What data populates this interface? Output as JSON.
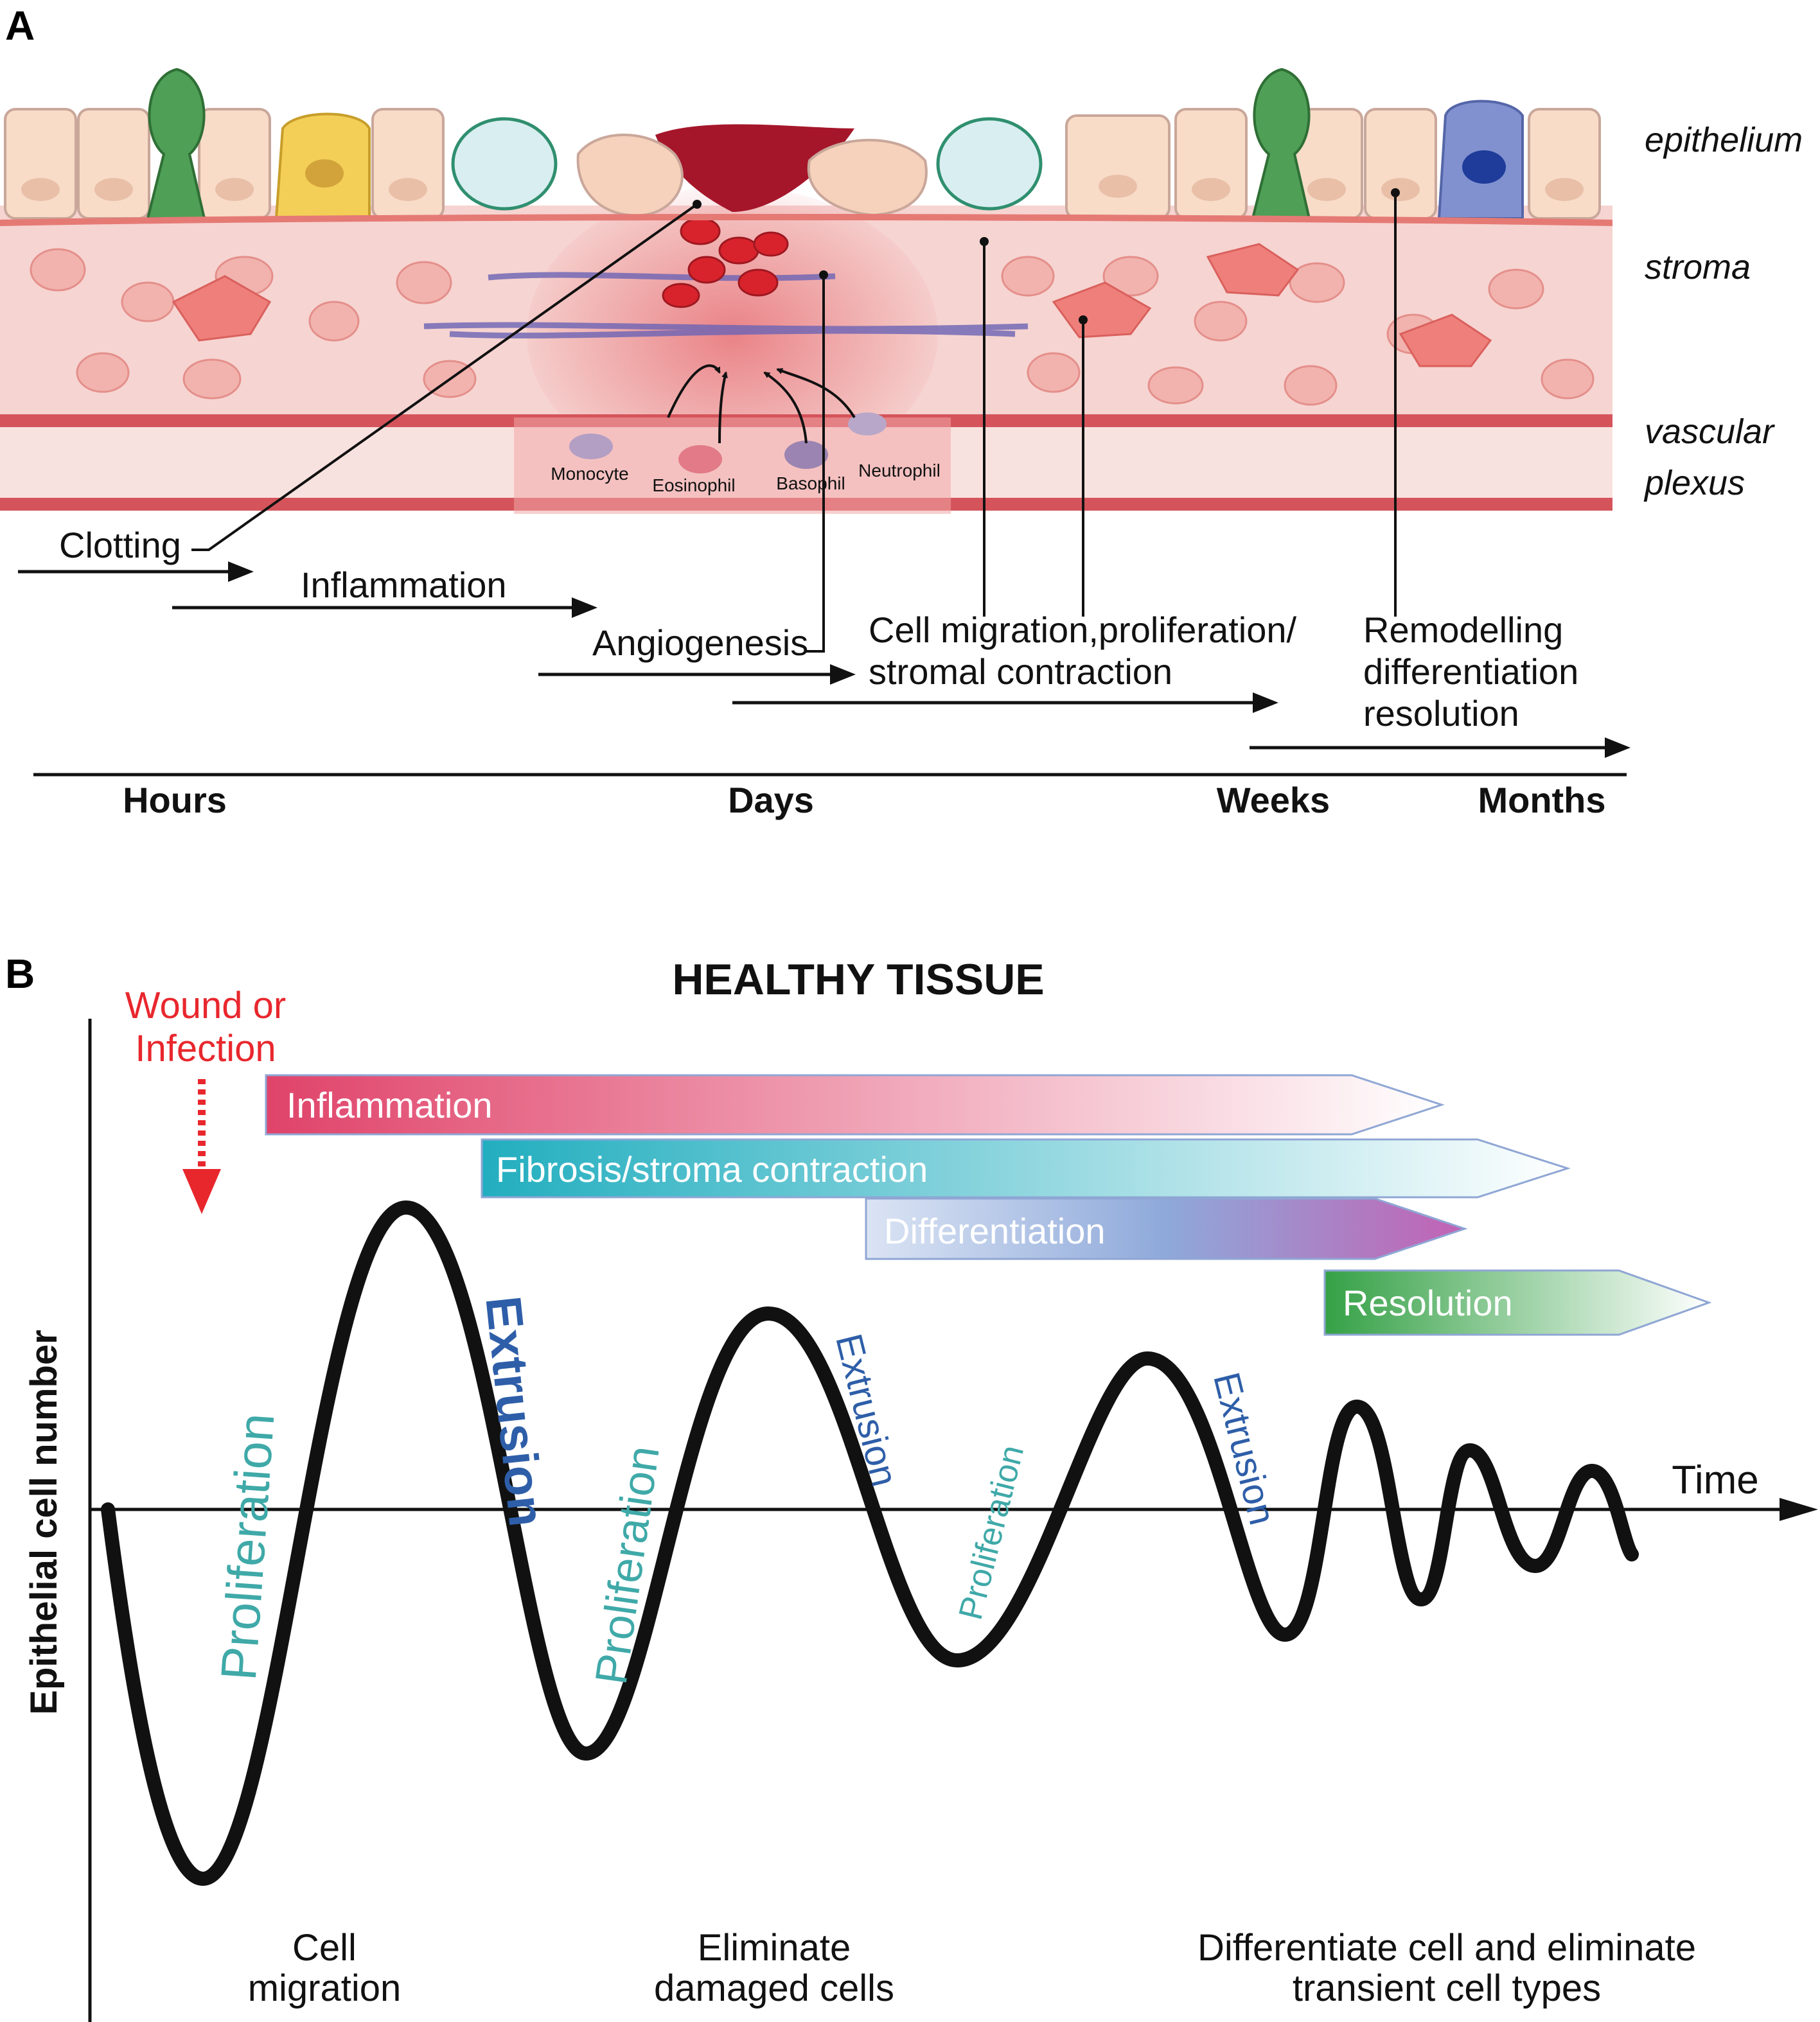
{
  "panel_a": {
    "letter": "A",
    "layer_labels": {
      "epithelium": "epithelium",
      "stroma": "stroma",
      "vascular_1": "vascular",
      "vascular_2": "plexus"
    },
    "blood_cells": {
      "monocyte": "Monocyte",
      "eosinophil": "Eosinophil",
      "basophil": "Basophil",
      "neutrophil": "Neutrophil"
    },
    "phases": {
      "clotting": "Clotting",
      "inflammation": "Inflammation",
      "angiogenesis": "Angiogenesis",
      "migration_1": "Cell migration,proliferation/",
      "migration_2": "stromal contraction",
      "remodel_1": "Remodelling",
      "remodel_2": "differentiation",
      "remodel_3": "resolution"
    },
    "timeline": {
      "hours": "Hours",
      "days": "Days",
      "weeks": "Weeks",
      "months": "Months"
    }
  },
  "panel_b": {
    "letter": "B",
    "title": "HEALTHY TISSUE",
    "trigger_1": "Wound or",
    "trigger_2": "Infection",
    "bars": {
      "inflammation": "Inflammation",
      "fibrosis": "Fibrosis/stroma contraction",
      "differentiation": "Differentiation",
      "resolution": "Resolution"
    },
    "y_axis_label": "Epithelial cell number",
    "x_axis_label": "Time",
    "wave_labels": {
      "prolif_1": "Proliferation",
      "extrusion_1": "Extrusion",
      "prolif_2": "Proliferation",
      "extrusion_2": "Extrusion",
      "prolif_3": "Proliferation",
      "extrusion_3": "Extrusion"
    },
    "outcomes": {
      "o1_line1": "Cell",
      "o1_line2": "migration",
      "o2_line1": "Eliminate",
      "o2_line2": "damaged cells",
      "o3_line1": "Differentiate cell and eliminate",
      "o3_line2": "transient cell types"
    },
    "colors": {
      "inflammation": "#e0436a",
      "fibrosis": "#2bb3c4",
      "differentiation_start": "#dbe4f4",
      "differentiation_end": "#c262b4",
      "resolution": "#3aa54a",
      "proliferation_text": "#3fa9a8",
      "extrusion_text": "#2e5ea8",
      "trigger": "#e8272d"
    }
  }
}
